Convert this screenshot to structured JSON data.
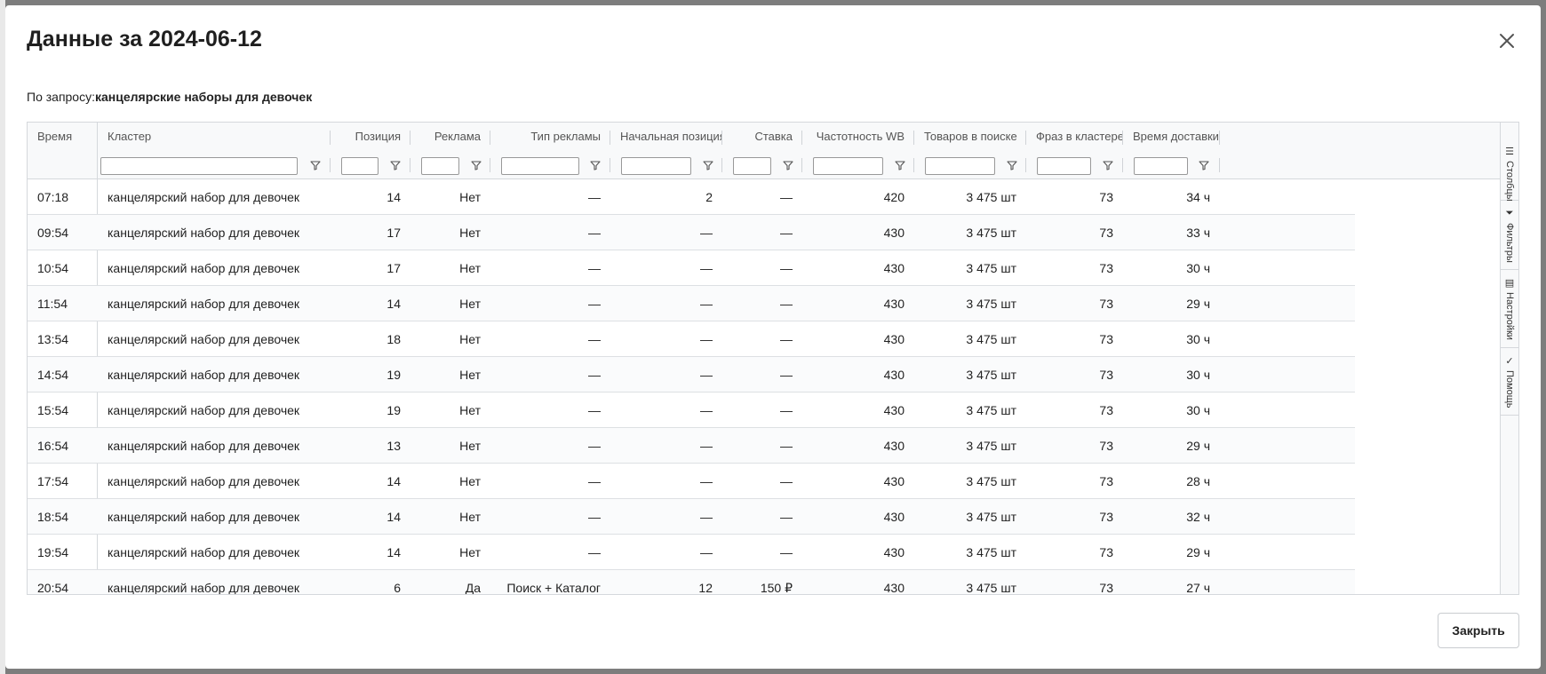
{
  "modal": {
    "title": "Данные за 2024-06-12",
    "query_prefix": "По запросу:",
    "query_value": "канцелярские наборы для девочек",
    "close_button_label": "Закрыть"
  },
  "grid": {
    "columns": [
      {
        "key": "time",
        "label": "Время"
      },
      {
        "key": "cluster",
        "label": "Кластер"
      },
      {
        "key": "position",
        "label": "Позиция"
      },
      {
        "key": "ads",
        "label": "Реклама"
      },
      {
        "key": "ad_type",
        "label": "Тип рекламы"
      },
      {
        "key": "start_position",
        "label": "Начальная позиция"
      },
      {
        "key": "bid",
        "label": "Ставка"
      },
      {
        "key": "wb_frequency",
        "label": "Частотность WB"
      },
      {
        "key": "goods_in_search",
        "label": "Товаров в поиске"
      },
      {
        "key": "phrases_in_cluster",
        "label": "Фраз в кластере"
      },
      {
        "key": "delivery_time",
        "label": "Время доставки"
      }
    ],
    "side_tabs": [
      {
        "label": "Столбцы",
        "icon": "columns-icon",
        "glyph": "☰"
      },
      {
        "label": "Фильтры",
        "icon": "filter-icon",
        "glyph": "⏷"
      },
      {
        "label": "Настройки",
        "icon": "settings-icon",
        "glyph": "▤"
      },
      {
        "label": "Помощь",
        "icon": "check-icon",
        "glyph": "✓"
      }
    ],
    "rows": [
      [
        "07:18",
        "канцелярский набор для девочек",
        "14",
        "Нет",
        "—",
        "2",
        "—",
        "420",
        "3 475 шт",
        "73",
        "34 ч"
      ],
      [
        "09:54",
        "канцелярский набор для девочек",
        "17",
        "Нет",
        "—",
        "—",
        "—",
        "430",
        "3 475 шт",
        "73",
        "33 ч"
      ],
      [
        "10:54",
        "канцелярский набор для девочек",
        "17",
        "Нет",
        "—",
        "—",
        "—",
        "430",
        "3 475 шт",
        "73",
        "30 ч"
      ],
      [
        "11:54",
        "канцелярский набор для девочек",
        "14",
        "Нет",
        "—",
        "—",
        "—",
        "430",
        "3 475 шт",
        "73",
        "29 ч"
      ],
      [
        "13:54",
        "канцелярский набор для девочек",
        "18",
        "Нет",
        "—",
        "—",
        "—",
        "430",
        "3 475 шт",
        "73",
        "30 ч"
      ],
      [
        "14:54",
        "канцелярский набор для девочек",
        "19",
        "Нет",
        "—",
        "—",
        "—",
        "430",
        "3 475 шт",
        "73",
        "30 ч"
      ],
      [
        "15:54",
        "канцелярский набор для девочек",
        "19",
        "Нет",
        "—",
        "—",
        "—",
        "430",
        "3 475 шт",
        "73",
        "30 ч"
      ],
      [
        "16:54",
        "канцелярский набор для девочек",
        "13",
        "Нет",
        "—",
        "—",
        "—",
        "430",
        "3 475 шт",
        "73",
        "29 ч"
      ],
      [
        "17:54",
        "канцелярский набор для девочек",
        "14",
        "Нет",
        "—",
        "—",
        "—",
        "430",
        "3 475 шт",
        "73",
        "28 ч"
      ],
      [
        "18:54",
        "канцелярский набор для девочек",
        "14",
        "Нет",
        "—",
        "—",
        "—",
        "430",
        "3 475 шт",
        "73",
        "32 ч"
      ],
      [
        "19:54",
        "канцелярский набор для девочек",
        "14",
        "Нет",
        "—",
        "—",
        "—",
        "430",
        "3 475 шт",
        "73",
        "29 ч"
      ],
      [
        "20:54",
        "канцелярский набор для девочек",
        "6",
        "Да",
        "Поиск + Каталог",
        "12",
        "150 ₽",
        "430",
        "3 475 шт",
        "73",
        "27 ч"
      ]
    ]
  }
}
